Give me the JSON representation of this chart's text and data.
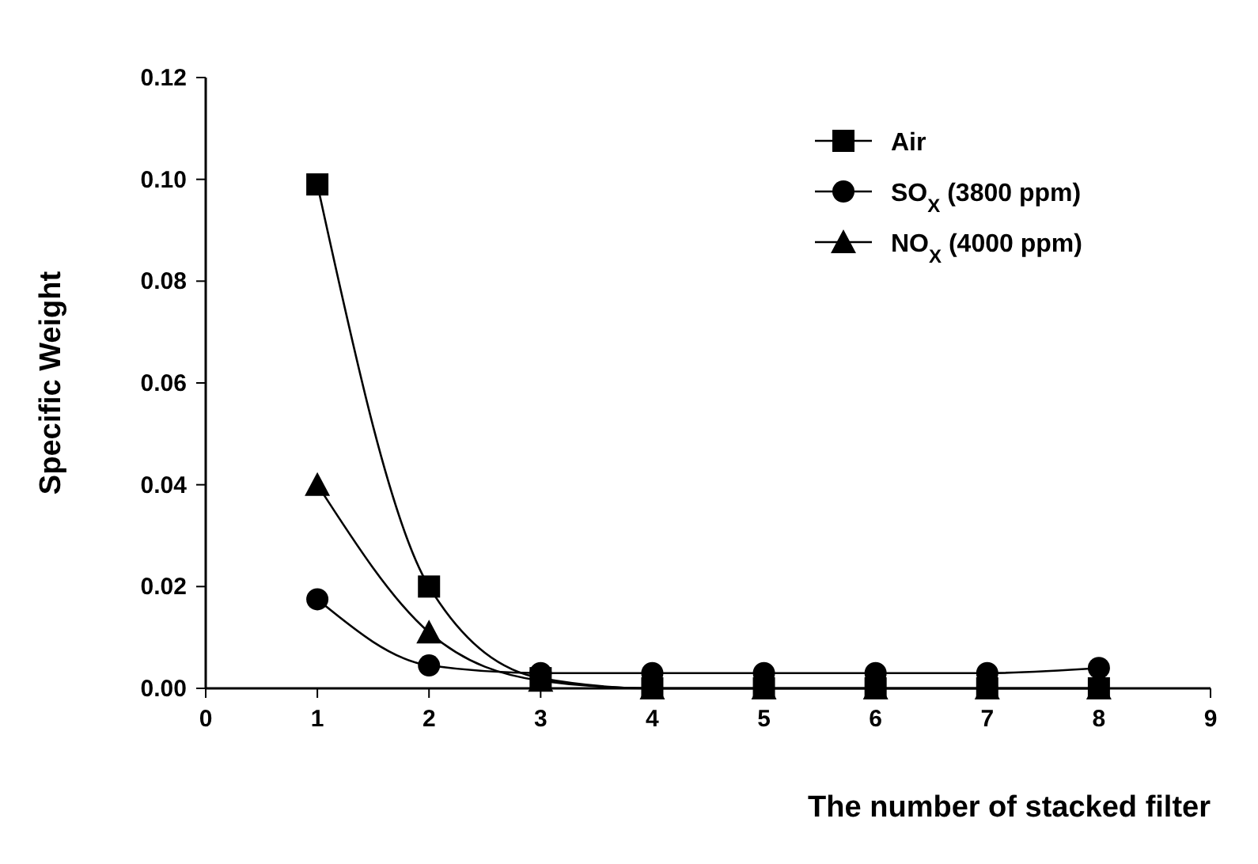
{
  "chart_data": {
    "type": "line",
    "xlabel": "The number of stacked filter",
    "ylabel": "Specific Weight",
    "x": [
      1,
      2,
      3,
      4,
      5,
      6,
      7,
      8
    ],
    "xlim": [
      0,
      9
    ],
    "xticks": [
      0,
      1,
      2,
      3,
      4,
      5,
      6,
      7,
      8,
      9
    ],
    "ylim": [
      0,
      0.12
    ],
    "yticks": [
      {
        "value": 0,
        "label": "0.00"
      },
      {
        "value": 0.02,
        "label": "0.02"
      },
      {
        "value": 0.04,
        "label": "0.04"
      },
      {
        "value": 0.06,
        "label": "0.06"
      },
      {
        "value": 0.08,
        "label": "0.08"
      },
      {
        "value": 0.1,
        "label": "0.10"
      },
      {
        "value": 0.12,
        "label": "0.12"
      }
    ],
    "grid": false,
    "legend": "top right",
    "line_style": "solid",
    "series": [
      {
        "name": "Air",
        "color": "#000000",
        "marker": "square",
        "values": [
          0.099,
          0.02,
          0.002,
          0,
          0,
          0,
          0,
          0
        ]
      },
      {
        "name": "SO$_{X}$ (3800 ppm)",
        "color": "#000000",
        "marker": "circle",
        "values": [
          0.0175,
          0.0045,
          0.003,
          0.003,
          0.003,
          0.003,
          0.003,
          0.004
        ]
      },
      {
        "name": "NO$_{X}$ (4000 ppm)",
        "color": "#000000",
        "marker": "triangle",
        "values": [
          0.04,
          0.011,
          0.0015,
          0,
          0,
          0,
          0,
          0
        ]
      }
    ]
  }
}
